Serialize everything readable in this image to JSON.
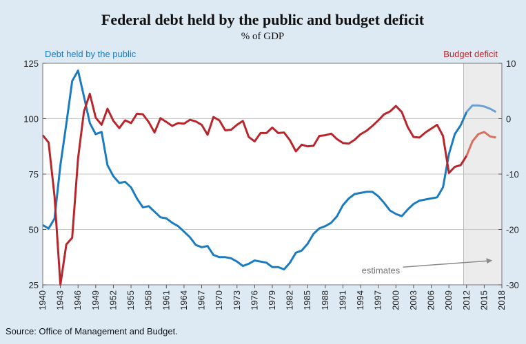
{
  "chart_data": {
    "type": "line",
    "title": "Federal debt held by the public and budget deficit",
    "subtitle": "% of GDP",
    "left_axis_label": "Debt held by the public",
    "right_axis_label": "Budget deficit",
    "left_ylim": [
      25,
      125
    ],
    "left_yticks": [
      25,
      50,
      75,
      100,
      125
    ],
    "right_ylim": [
      -30,
      10
    ],
    "right_yticks": [
      -30,
      -20,
      -10,
      0,
      10
    ],
    "xlim": [
      1940,
      2018
    ],
    "xticks": [
      "1940",
      "1943",
      "1946",
      "1949",
      "1952",
      "1955",
      "1958",
      "1961",
      "1964",
      "1967",
      "1970",
      "1973",
      "1976",
      "1979",
      "1982",
      "1985",
      "1988",
      "1991",
      "1994",
      "1997",
      "2000",
      "2003",
      "2006",
      "2009",
      "2012",
      "2015",
      "2018"
    ],
    "estimate_start": 2012,
    "annotation": "estimates",
    "grid": true,
    "colors": {
      "debt": "#1a7bbf",
      "debt_estimate": "#6a9fd6",
      "deficit": "#b8262c",
      "deficit_estimate": "#d9705f",
      "shade": "#ececec"
    },
    "series": [
      {
        "name": "Debt held by the public",
        "axis": "left",
        "x": [
          1940,
          1941,
          1942,
          1943,
          1944,
          1945,
          1946,
          1947,
          1948,
          1949,
          1950,
          1951,
          1952,
          1953,
          1954,
          1955,
          1956,
          1957,
          1958,
          1959,
          1960,
          1961,
          1962,
          1963,
          1964,
          1965,
          1966,
          1967,
          1968,
          1969,
          1970,
          1971,
          1972,
          1973,
          1974,
          1975,
          1976,
          1977,
          1978,
          1979,
          1980,
          1981,
          1982,
          1983,
          1984,
          1985,
          1986,
          1987,
          1988,
          1989,
          1990,
          1991,
          1992,
          1993,
          1994,
          1995,
          1996,
          1997,
          1998,
          1999,
          2000,
          2001,
          2002,
          2003,
          2004,
          2005,
          2006,
          2007,
          2008,
          2009,
          2010,
          2011,
          2012,
          2013,
          2014,
          2015,
          2016,
          2017
        ],
        "values": [
          52,
          50.4,
          54.9,
          79,
          97.6,
          117,
          121.7,
          110,
          98,
          93,
          94,
          79,
          74,
          71,
          71.5,
          69,
          64,
          60,
          60.5,
          58,
          55.5,
          55,
          53,
          51.5,
          49,
          46.5,
          43,
          42,
          42.5,
          38.5,
          37.5,
          37.5,
          37,
          35.5,
          33.5,
          34.5,
          36,
          35.5,
          35,
          33,
          33,
          32,
          35,
          39.5,
          40.5,
          43.5,
          48,
          50.5,
          51.5,
          53,
          56,
          61,
          64,
          66,
          66.5,
          67,
          67,
          65,
          62,
          58.5,
          57,
          56,
          59,
          61.5,
          63,
          63.5,
          64,
          64.5,
          69,
          84,
          93,
          97,
          103,
          106,
          106,
          105.5,
          104.5,
          103
        ]
      },
      {
        "name": "Budget deficit",
        "axis": "right",
        "x": [
          1940,
          1941,
          1942,
          1943,
          1944,
          1945,
          1946,
          1947,
          1948,
          1949,
          1950,
          1951,
          1952,
          1953,
          1954,
          1955,
          1956,
          1957,
          1958,
          1959,
          1960,
          1961,
          1962,
          1963,
          1964,
          1965,
          1966,
          1967,
          1968,
          1969,
          1970,
          1971,
          1972,
          1973,
          1974,
          1975,
          1976,
          1977,
          1978,
          1979,
          1980,
          1981,
          1982,
          1983,
          1984,
          1985,
          1986,
          1987,
          1988,
          1989,
          1990,
          1991,
          1992,
          1993,
          1994,
          1995,
          1996,
          1997,
          1998,
          1999,
          2000,
          2001,
          2002,
          2003,
          2004,
          2005,
          2006,
          2007,
          2008,
          2009,
          2010,
          2011,
          2012,
          2013,
          2014,
          2015,
          2016,
          2017
        ],
        "values": [
          -3,
          -4.3,
          -14,
          -30,
          -22.7,
          -21.5,
          -7.2,
          1.3,
          4.5,
          0.2,
          -1.1,
          1.8,
          -0.4,
          -1.7,
          -0.3,
          -0.8,
          0.9,
          0.8,
          -0.6,
          -2.5,
          0.1,
          -0.6,
          -1.3,
          -0.8,
          -0.9,
          -0.2,
          -0.5,
          -1.1,
          -2.9,
          0.3,
          -0.3,
          -2.1,
          -2,
          -1.1,
          -0.4,
          -3.3,
          -4.1,
          -2.6,
          -2.6,
          -1.6,
          -2.6,
          -2.5,
          -3.9,
          -5.9,
          -4.7,
          -5.0,
          -4.9,
          -3.1,
          -3.0,
          -2.7,
          -3.7,
          -4.4,
          -4.5,
          -3.8,
          -2.8,
          -2.2,
          -1.3,
          -0.3,
          0.8,
          1.3,
          2.3,
          1.2,
          -1.5,
          -3.3,
          -3.4,
          -2.5,
          -1.8,
          -1.1,
          -3.1,
          -9.8,
          -8.7,
          -8.4,
          -6.7,
          -4.1,
          -2.8,
          -2.4,
          -3.2,
          -3.4
        ]
      }
    ]
  },
  "source": "Source: Office of Management and Budget."
}
